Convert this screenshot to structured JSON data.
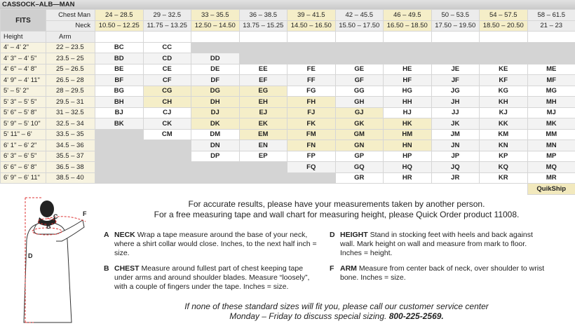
{
  "header": {
    "title": "CASSOCK–ALB—MAN"
  },
  "table": {
    "fits": "FITS",
    "chest_label": "Chest Man",
    "neck_label": "Neck",
    "height_label": "Height",
    "arm_label": "Arm",
    "chest": [
      "24 – 28.5",
      "29 – 32.5",
      "33 – 35.5",
      "36 – 38.5",
      "39 – 41.5",
      "42 – 45.5",
      "46 – 49.5",
      "50 – 53.5",
      "54 – 57.5",
      "58 – 61.5"
    ],
    "neck": [
      "10.50 – 12.25",
      "11.75 – 13.25",
      "12.50 – 14.50",
      "13.75 – 15.25",
      "14.50 – 16.50",
      "15.50 – 17.50",
      "16.50 – 18.50",
      "17.50 – 19.50",
      "18.50 – 20.50",
      "21 – 23"
    ],
    "highlight_columns": [
      0,
      2,
      4,
      6,
      8
    ],
    "rows": [
      {
        "height": "4' – 4' 2\"",
        "arm": "22 – 23.5",
        "cells": [
          "BC",
          "CC",
          null,
          null,
          null,
          null,
          null,
          null,
          null,
          null
        ],
        "quikship": []
      },
      {
        "height": "4' 3\" – 4' 5\"",
        "arm": "23.5 – 25",
        "cells": [
          "BD",
          "CD",
          "DD",
          null,
          null,
          null,
          null,
          null,
          null,
          null
        ],
        "quikship": []
      },
      {
        "height": "4' 6\" – 4' 8\"",
        "arm": "25 – 26.5",
        "cells": [
          "BE",
          "CE",
          "DE",
          "EE",
          "FE",
          "GE",
          "HE",
          "JE",
          "KE",
          "ME"
        ],
        "quikship": []
      },
      {
        "height": "4' 9\" – 4' 11\"",
        "arm": "26.5 – 28",
        "cells": [
          "BF",
          "CF",
          "DF",
          "EF",
          "FF",
          "GF",
          "HF",
          "JF",
          "KF",
          "MF"
        ],
        "quikship": []
      },
      {
        "height": "5' – 5' 2\"",
        "arm": "28 – 29.5",
        "cells": [
          "BG",
          "CG",
          "DG",
          "EG",
          "FG",
          "GG",
          "HG",
          "JG",
          "KG",
          "MG"
        ],
        "quikship": [
          1,
          2,
          3
        ]
      },
      {
        "height": "5' 3\" – 5' 5\"",
        "arm": "29.5 – 31",
        "cells": [
          "BH",
          "CH",
          "DH",
          "EH",
          "FH",
          "GH",
          "HH",
          "JH",
          "KH",
          "MH"
        ],
        "quikship": [
          1,
          2,
          3,
          4
        ]
      },
      {
        "height": "5' 6\" – 5' 8\"",
        "arm": "31 – 32.5",
        "cells": [
          "BJ",
          "CJ",
          "DJ",
          "EJ",
          "FJ",
          "GJ",
          "HJ",
          "JJ",
          "KJ",
          "MJ"
        ],
        "quikship": [
          2,
          3,
          4,
          5
        ]
      },
      {
        "height": "5' 9\" – 5' 10\"",
        "arm": "32.5 – 34",
        "cells": [
          "BK",
          "CK",
          "DK",
          "EK",
          "FK",
          "GK",
          "HK",
          "JK",
          "KK",
          "MK"
        ],
        "quikship": [
          2,
          3,
          4,
          5,
          6
        ]
      },
      {
        "height": "5' 11\" – 6'",
        "arm": "33.5 – 35",
        "cells": [
          null,
          "CM",
          "DM",
          "EM",
          "FM",
          "GM",
          "HM",
          "JM",
          "KM",
          "MM"
        ],
        "quikship": [
          3,
          4,
          5,
          6
        ]
      },
      {
        "height": "6' 1\" – 6' 2\"",
        "arm": "34.5 – 36",
        "cells": [
          null,
          null,
          "DN",
          "EN",
          "FN",
          "GN",
          "HN",
          "JN",
          "KN",
          "MN"
        ],
        "quikship": [
          4,
          5,
          6
        ]
      },
      {
        "height": "6' 3\" – 6' 5\"",
        "arm": "35.5 – 37",
        "cells": [
          null,
          null,
          "DP",
          "EP",
          "FP",
          "GP",
          "HP",
          "JP",
          "KP",
          "MP"
        ],
        "quikship": []
      },
      {
        "height": "6' 6\" – 6' 8\"",
        "arm": "36.5 – 38",
        "cells": [
          null,
          null,
          null,
          null,
          "FQ",
          "GQ",
          "HQ",
          "JQ",
          "KQ",
          "MQ"
        ],
        "quikship": []
      },
      {
        "height": "6' 9\" – 6' 11\"",
        "arm": "38.5 – 40",
        "cells": [
          null,
          null,
          null,
          null,
          null,
          "GR",
          "HR",
          "JR",
          "KR",
          "MR"
        ],
        "quikship": []
      }
    ],
    "quikship_label": "QuikShip"
  },
  "figure": {
    "labels": [
      "A",
      "B",
      "C",
      "D",
      "F"
    ]
  },
  "notes": [
    "For accurate results, please have your measurements taken by another person.",
    "For a free measuring tape and wall chart for measuring height, please Quick Order product 11008."
  ],
  "measures": [
    {
      "letter": "A",
      "name": "NECK",
      "text": "Wrap a tape measure around the base of your neck, where a shirt collar would close. Inches, to the next half inch = size."
    },
    {
      "letter": "B",
      "name": "CHEST",
      "text": "Measure around fullest part of chest keeping tape under arms and around shoulder blades. Measure “loosely”, with a couple of fingers under the tape. Inches = size."
    },
    {
      "letter": "D",
      "name": "HEIGHT",
      "text": "Stand in stocking feet with heels and back against wall. Mark height on wall and measure from mark to floor. Inches = height."
    },
    {
      "letter": "F",
      "name": "ARM",
      "text": "Measure from center back of neck, over shoulder to wrist bone. Inches = size."
    }
  ],
  "footer": {
    "line1": "If none of these standard sizes will fit you, please call our customer service center",
    "line2": "Monday – Friday to discuss special sizing.",
    "phone": "800-225-2569."
  }
}
